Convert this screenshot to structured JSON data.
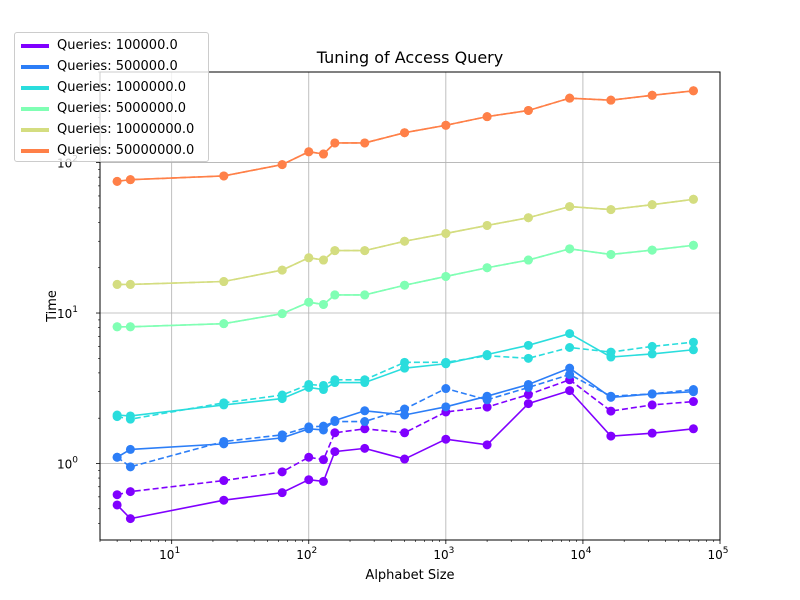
{
  "chart_data": {
    "type": "line",
    "title": "Tuning of Access Query",
    "xlabel": "Alphabet Size",
    "ylabel": "Time",
    "xscale": "log",
    "yscale": "log",
    "xlim": [
      3,
      100000
    ],
    "ylim": [
      0.31,
      400
    ],
    "grid": true,
    "legend_position": "upper-left",
    "x_ticks": [
      {
        "value": 10,
        "base": "10",
        "exp": "1"
      },
      {
        "value": 100,
        "base": "10",
        "exp": "2"
      },
      {
        "value": 1000,
        "base": "10",
        "exp": "3"
      },
      {
        "value": 10000,
        "base": "10",
        "exp": "4"
      },
      {
        "value": 100000,
        "base": "10",
        "exp": "5"
      }
    ],
    "y_ticks": [
      {
        "value": 1,
        "base": "10",
        "exp": "0"
      },
      {
        "value": 10,
        "base": "10",
        "exp": "1"
      },
      {
        "value": 100,
        "base": "10",
        "exp": "2"
      }
    ],
    "x": [
      4,
      5,
      24,
      64,
      100,
      128,
      155,
      256,
      500,
      1000,
      2000,
      4000,
      8000,
      16000,
      32000,
      64000
    ],
    "series": [
      {
        "name": "Queries: 100000.0",
        "color": "#8000ff",
        "solid": [
          0.53,
          0.43,
          0.57,
          0.64,
          0.78,
          0.76,
          1.2,
          1.26,
          1.07,
          1.45,
          1.33,
          2.5,
          3.05,
          1.52,
          1.59,
          1.7
        ],
        "dashed": [
          0.62,
          0.65,
          0.77,
          0.88,
          1.1,
          1.06,
          1.6,
          1.7,
          1.6,
          2.2,
          2.37,
          2.87,
          3.6,
          2.23,
          2.45,
          2.58
        ]
      },
      {
        "name": "Queries: 500000.0",
        "color": "#2c7ef7",
        "solid": [
          1.1,
          1.24,
          1.35,
          1.48,
          1.7,
          1.67,
          1.93,
          2.24,
          2.1,
          2.38,
          2.8,
          3.35,
          4.3,
          2.75,
          2.9,
          3.0
        ],
        "dashed": [
          1.1,
          0.95,
          1.4,
          1.55,
          1.75,
          1.77,
          1.9,
          1.9,
          2.3,
          3.15,
          2.65,
          3.2,
          3.9,
          2.8,
          2.9,
          3.1
        ]
      },
      {
        "name": "Queries: 1000000.0",
        "color": "#2adddd",
        "solid": [
          2.1,
          2.07,
          2.45,
          2.7,
          3.2,
          3.1,
          3.45,
          3.45,
          4.3,
          4.6,
          5.3,
          6.1,
          7.3,
          5.1,
          5.35,
          5.7
        ],
        "dashed": [
          2.05,
          1.97,
          2.53,
          2.85,
          3.35,
          3.3,
          3.6,
          3.6,
          4.7,
          4.7,
          5.2,
          5.0,
          5.9,
          5.5,
          6.0,
          6.4
        ]
      },
      {
        "name": "Queries: 5000000.0",
        "color": "#80ffb4",
        "solid": [
          8.1,
          8.1,
          8.5,
          9.9,
          11.8,
          11.4,
          13.2,
          13.2,
          15.3,
          17.5,
          20,
          22.5,
          26.7,
          24.5,
          26.2,
          28.2
        ],
        "dashed": [
          8.1,
          8.1,
          8.5,
          9.9,
          11.8,
          11.4,
          13.2,
          13.2,
          15.3,
          17.5,
          20,
          22.5,
          26.7,
          24.5,
          26.2,
          28.2
        ]
      },
      {
        "name": "Queries: 10000000.0",
        "color": "#d4dd80",
        "solid": [
          15.5,
          15.5,
          16.2,
          19.3,
          23.3,
          22.5,
          26,
          26,
          30,
          33.8,
          38.2,
          43,
          51,
          48.7,
          52.5,
          57
        ],
        "dashed": [
          15.5,
          15.5,
          16.2,
          19.3,
          23.3,
          22.5,
          26,
          26,
          30,
          33.8,
          38.2,
          43,
          51,
          48.7,
          52.5,
          57
        ]
      },
      {
        "name": "Queries: 50000000.0",
        "color": "#ff8048",
        "solid": [
          75,
          77,
          81.5,
          97,
          118,
          114,
          135,
          135,
          158,
          177,
          202,
          222,
          268,
          260,
          280,
          300
        ],
        "dashed": [
          75,
          77,
          81.5,
          97,
          118,
          114,
          135,
          135,
          158,
          177,
          202,
          222,
          268,
          260,
          280,
          300
        ]
      }
    ]
  }
}
